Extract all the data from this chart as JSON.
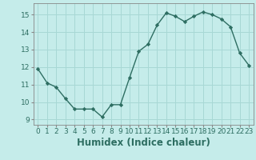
{
  "x": [
    0,
    1,
    2,
    3,
    4,
    5,
    6,
    7,
    8,
    9,
    10,
    11,
    12,
    13,
    14,
    15,
    16,
    17,
    18,
    19,
    20,
    21,
    22,
    23
  ],
  "y": [
    11.9,
    11.1,
    10.85,
    10.2,
    9.6,
    9.6,
    9.6,
    9.15,
    9.85,
    9.85,
    11.4,
    12.9,
    13.3,
    14.4,
    15.1,
    14.9,
    14.6,
    14.9,
    15.15,
    15.0,
    14.75,
    14.3,
    12.8,
    12.1
  ],
  "line_color": "#2e6e62",
  "marker": "D",
  "marker_size": 2.2,
  "bg_color": "#c5ecea",
  "grid_color": "#a8d8d5",
  "xlabel": "Humidex (Indice chaleur)",
  "xlim": [
    -0.5,
    23.5
  ],
  "ylim": [
    8.7,
    15.65
  ],
  "yticks": [
    9,
    10,
    11,
    12,
    13,
    14,
    15
  ],
  "xticks": [
    0,
    1,
    2,
    3,
    4,
    5,
    6,
    7,
    8,
    9,
    10,
    11,
    12,
    13,
    14,
    15,
    16,
    17,
    18,
    19,
    20,
    21,
    22,
    23
  ],
  "tick_fontsize": 6.5,
  "xlabel_fontsize": 8.5,
  "line_width": 1.0
}
